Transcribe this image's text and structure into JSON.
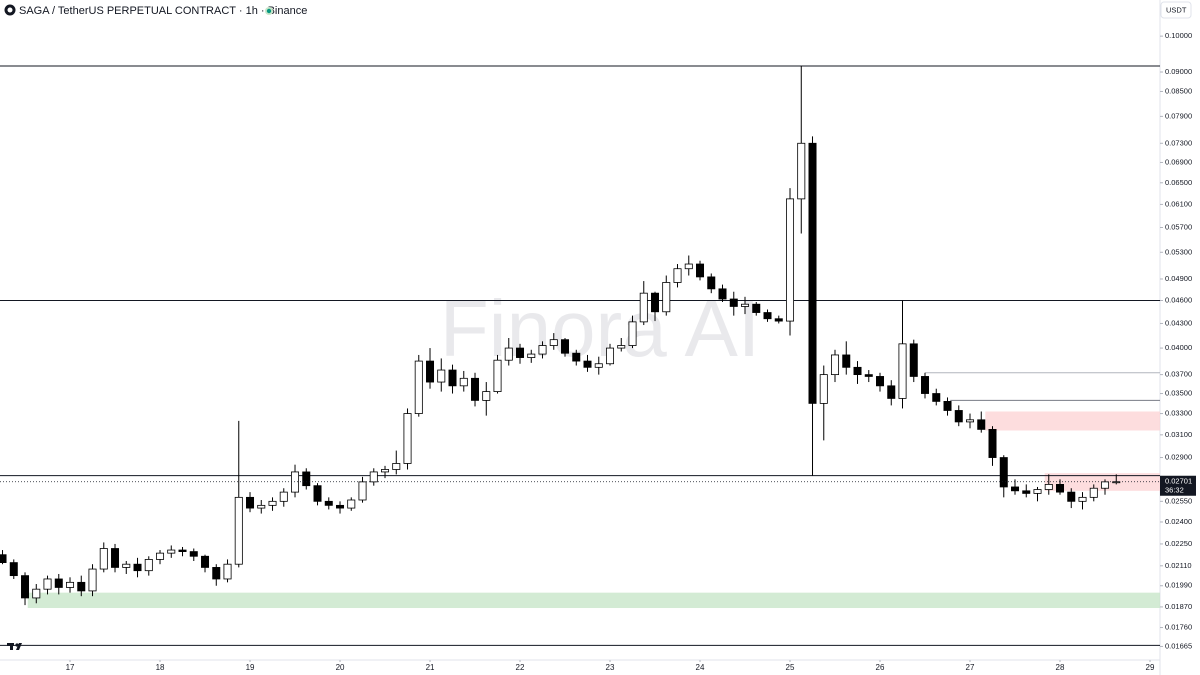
{
  "chart_data": {
    "type": "candlestick",
    "title": "SAGA / TetherUS PERPETUAL CONTRACT · 1h · Binance",
    "currency": "USDT",
    "watermark": "Finora AI",
    "log_scale": true,
    "grid": false,
    "up_color": "#ffffff",
    "down_color": "#000000",
    "x": [
      16.25,
      16.375,
      16.5,
      16.625,
      16.75,
      16.875,
      17,
      17.125,
      17.25,
      17.375,
      17.5,
      17.625,
      17.75,
      17.875,
      18,
      18.125,
      18.25,
      18.375,
      18.5,
      18.625,
      18.75,
      18.875,
      19,
      19.125,
      19.25,
      19.375,
      19.5,
      19.625,
      19.75,
      19.875,
      20,
      20.125,
      20.25,
      20.375,
      20.5,
      20.625,
      20.75,
      20.875,
      21,
      21.125,
      21.25,
      21.375,
      21.5,
      21.625,
      21.75,
      21.875,
      22,
      22.125,
      22.25,
      22.375,
      22.5,
      22.625,
      22.75,
      22.875,
      23,
      23.125,
      23.25,
      23.375,
      23.5,
      23.625,
      23.75,
      23.875,
      24,
      24.125,
      24.25,
      24.375,
      24.5,
      24.625,
      24.75,
      24.875,
      25,
      25.125,
      25.25,
      25.375,
      25.5,
      25.625,
      25.75,
      25.875,
      26,
      26.125,
      26.25,
      26.375,
      26.5,
      26.625,
      26.75,
      26.875,
      27,
      27.125,
      27.25,
      27.375,
      27.5,
      27.625,
      27.75,
      27.875,
      28,
      28.125,
      28.25,
      28.375,
      28.5,
      28.625
    ],
    "open": [
      0.0218,
      0.0213,
      0.0205,
      0.0192,
      0.0197,
      0.0203,
      0.0198,
      0.0201,
      0.0196,
      0.0209,
      0.0222,
      0.021,
      0.0212,
      0.0208,
      0.0215,
      0.0219,
      0.0221,
      0.022,
      0.0217,
      0.021,
      0.0203,
      0.0212,
      0.0258,
      0.025,
      0.0252,
      0.0255,
      0.0262,
      0.0278,
      0.0267,
      0.0255,
      0.0252,
      0.025,
      0.0256,
      0.027,
      0.0278,
      0.028,
      0.0285,
      0.033,
      0.0385,
      0.0362,
      0.0375,
      0.0358,
      0.0366,
      0.0343,
      0.0352,
      0.0386,
      0.04,
      0.0389,
      0.0393,
      0.0403,
      0.041,
      0.0394,
      0.0385,
      0.0378,
      0.0382,
      0.04,
      0.0403,
      0.0432,
      0.047,
      0.0445,
      0.0485,
      0.0505,
      0.0512,
      0.0493,
      0.0476,
      0.0462,
      0.0452,
      0.0455,
      0.0444,
      0.0436,
      0.0433,
      0.062,
      0.073,
      0.034,
      0.037,
      0.0392,
      0.0378,
      0.037,
      0.0368,
      0.0358,
      0.0345,
      0.0405,
      0.0368,
      0.035,
      0.0342,
      0.0333,
      0.0322,
      0.0324,
      0.0315,
      0.029,
      0.0266,
      0.0263,
      0.0261,
      0.0264,
      0.0268,
      0.0262,
      0.0255,
      0.0258,
      0.0265,
      0.027
    ],
    "high": [
      0.0221,
      0.0215,
      0.0207,
      0.02,
      0.0205,
      0.0206,
      0.0204,
      0.0205,
      0.0212,
      0.0226,
      0.0225,
      0.0214,
      0.0216,
      0.0217,
      0.0221,
      0.0224,
      0.0223,
      0.0222,
      0.0218,
      0.0212,
      0.0215,
      0.0323,
      0.0262,
      0.0256,
      0.0258,
      0.0265,
      0.0284,
      0.0281,
      0.0269,
      0.0258,
      0.0255,
      0.0258,
      0.0274,
      0.0281,
      0.0283,
      0.0296,
      0.0335,
      0.0392,
      0.04,
      0.0388,
      0.0381,
      0.0374,
      0.0372,
      0.0362,
      0.0392,
      0.0412,
      0.0405,
      0.0398,
      0.0408,
      0.0418,
      0.0412,
      0.0398,
      0.0392,
      0.039,
      0.0405,
      0.0412,
      0.044,
      0.0487,
      0.0472,
      0.0495,
      0.0512,
      0.0525,
      0.0517,
      0.0498,
      0.0482,
      0.0472,
      0.0465,
      0.0458,
      0.0448,
      0.044,
      0.064,
      0.0916,
      0.0745,
      0.038,
      0.0398,
      0.0408,
      0.0385,
      0.0375,
      0.0372,
      0.0364,
      0.046,
      0.041,
      0.0372,
      0.0355,
      0.0346,
      0.0338,
      0.033,
      0.0332,
      0.0318,
      0.0292,
      0.0272,
      0.0268,
      0.0266,
      0.0276,
      0.0272,
      0.0265,
      0.0262,
      0.0268,
      0.0272,
      0.0276
    ],
    "low": [
      0.0212,
      0.0203,
      0.0188,
      0.0189,
      0.0194,
      0.0194,
      0.0195,
      0.0193,
      0.0193,
      0.0207,
      0.0207,
      0.0206,
      0.0204,
      0.0205,
      0.0212,
      0.0216,
      0.0217,
      0.0214,
      0.0207,
      0.0199,
      0.0201,
      0.021,
      0.0247,
      0.0246,
      0.0248,
      0.0251,
      0.0258,
      0.0264,
      0.0252,
      0.0249,
      0.0246,
      0.0248,
      0.0254,
      0.0267,
      0.0273,
      0.0276,
      0.028,
      0.0327,
      0.0355,
      0.0352,
      0.035,
      0.0352,
      0.0337,
      0.0328,
      0.035,
      0.038,
      0.0382,
      0.0383,
      0.0388,
      0.0398,
      0.039,
      0.038,
      0.0373,
      0.037,
      0.038,
      0.0396,
      0.04,
      0.0428,
      0.0433,
      0.044,
      0.0478,
      0.0495,
      0.0488,
      0.047,
      0.0458,
      0.044,
      0.0442,
      0.044,
      0.0432,
      0.043,
      0.0415,
      0.056,
      0.0275,
      0.0305,
      0.0362,
      0.037,
      0.036,
      0.0362,
      0.0352,
      0.0338,
      0.0335,
      0.0362,
      0.0345,
      0.0338,
      0.0328,
      0.0318,
      0.0316,
      0.0312,
      0.0283,
      0.0258,
      0.026,
      0.0258,
      0.0255,
      0.026,
      0.026,
      0.025,
      0.0249,
      0.0255,
      0.026,
      0.0268
    ],
    "close": [
      0.0213,
      0.0205,
      0.0192,
      0.0197,
      0.0203,
      0.0198,
      0.0201,
      0.0196,
      0.0209,
      0.0222,
      0.021,
      0.0212,
      0.0208,
      0.0215,
      0.0219,
      0.0221,
      0.022,
      0.0217,
      0.021,
      0.0203,
      0.0212,
      0.0258,
      0.025,
      0.0252,
      0.0255,
      0.0262,
      0.0278,
      0.0267,
      0.0255,
      0.0252,
      0.025,
      0.0256,
      0.027,
      0.0278,
      0.028,
      0.0285,
      0.033,
      0.0385,
      0.0362,
      0.0375,
      0.0358,
      0.0366,
      0.0343,
      0.0352,
      0.0386,
      0.04,
      0.0389,
      0.0393,
      0.0403,
      0.041,
      0.0394,
      0.0385,
      0.0378,
      0.0382,
      0.04,
      0.0403,
      0.0432,
      0.047,
      0.0445,
      0.0485,
      0.0505,
      0.0512,
      0.0493,
      0.0476,
      0.0462,
      0.0452,
      0.0455,
      0.0444,
      0.0436,
      0.0433,
      0.062,
      0.073,
      0.034,
      0.037,
      0.0392,
      0.0378,
      0.037,
      0.0368,
      0.0358,
      0.0345,
      0.0405,
      0.0368,
      0.035,
      0.0342,
      0.0333,
      0.0322,
      0.0324,
      0.0315,
      0.029,
      0.0266,
      0.0263,
      0.0261,
      0.0264,
      0.0268,
      0.0262,
      0.0255,
      0.0258,
      0.0265,
      0.027,
      0.02701
    ],
    "last_price": 0.02701,
    "countdown": "36:32",
    "levels": [
      {
        "value": 0.0916,
        "color": "#131722"
      },
      {
        "value": 0.046,
        "color": "#131722"
      },
      {
        "value": 0.0275,
        "color": "#131722"
      },
      {
        "value": 0.0167,
        "color": "#131722"
      },
      {
        "value": 0.0372,
        "from": 26.5,
        "color": "#b2b5be"
      },
      {
        "value": 0.0343,
        "from": 26.78,
        "color": "#787b86"
      }
    ],
    "zones": [
      {
        "low": 0.01864,
        "high": 0.0195,
        "from": 16.53,
        "color": "#c8e6c9"
      },
      {
        "low": 0.0314,
        "high": 0.0332,
        "from": 27.17,
        "color": "#fcd4d6"
      },
      {
        "low": 0.0263,
        "high": 0.0277,
        "from": 27.83,
        "color": "#fcd4d6"
      }
    ],
    "xlim": [
      16.222,
      29.111
    ],
    "xticks": [
      17,
      18,
      19,
      20,
      21,
      22,
      23,
      24,
      25,
      26,
      27,
      28,
      29
    ],
    "ylim": [
      0.016,
      0.1112
    ],
    "yticks": [
      {
        "value": 0.1,
        "label": "0.10000"
      },
      {
        "value": 0.09,
        "label": "0.09000"
      },
      {
        "value": 0.085,
        "label": "0.08500"
      },
      {
        "value": 0.079,
        "label": "0.07900"
      },
      {
        "value": 0.073,
        "label": "0.07300"
      },
      {
        "value": 0.069,
        "label": "0.06900"
      },
      {
        "value": 0.065,
        "label": "0.06500"
      },
      {
        "value": 0.061,
        "label": "0.06100"
      },
      {
        "value": 0.057,
        "label": "0.05700"
      },
      {
        "value": 0.053,
        "label": "0.05300"
      },
      {
        "value": 0.049,
        "label": "0.04900"
      },
      {
        "value": 0.046,
        "label": "0.04600"
      },
      {
        "value": 0.043,
        "label": "0.04300"
      },
      {
        "value": 0.04,
        "label": "0.04000"
      },
      {
        "value": 0.037,
        "label": "0.03700"
      },
      {
        "value": 0.035,
        "label": "0.03500"
      },
      {
        "value": 0.033,
        "label": "0.03300"
      },
      {
        "value": 0.031,
        "label": "0.03100"
      },
      {
        "value": 0.029,
        "label": "0.02900"
      },
      {
        "value": 0.0255,
        "label": "0.02550"
      },
      {
        "value": 0.024,
        "label": "0.02400"
      },
      {
        "value": 0.0225,
        "label": "0.02250"
      },
      {
        "value": 0.0211,
        "label": "0.02110"
      },
      {
        "value": 0.0199,
        "label": "0.01990"
      },
      {
        "value": 0.0187,
        "label": "0.01870"
      },
      {
        "value": 0.0176,
        "label": "0.01760"
      },
      0.01665
    ]
  }
}
